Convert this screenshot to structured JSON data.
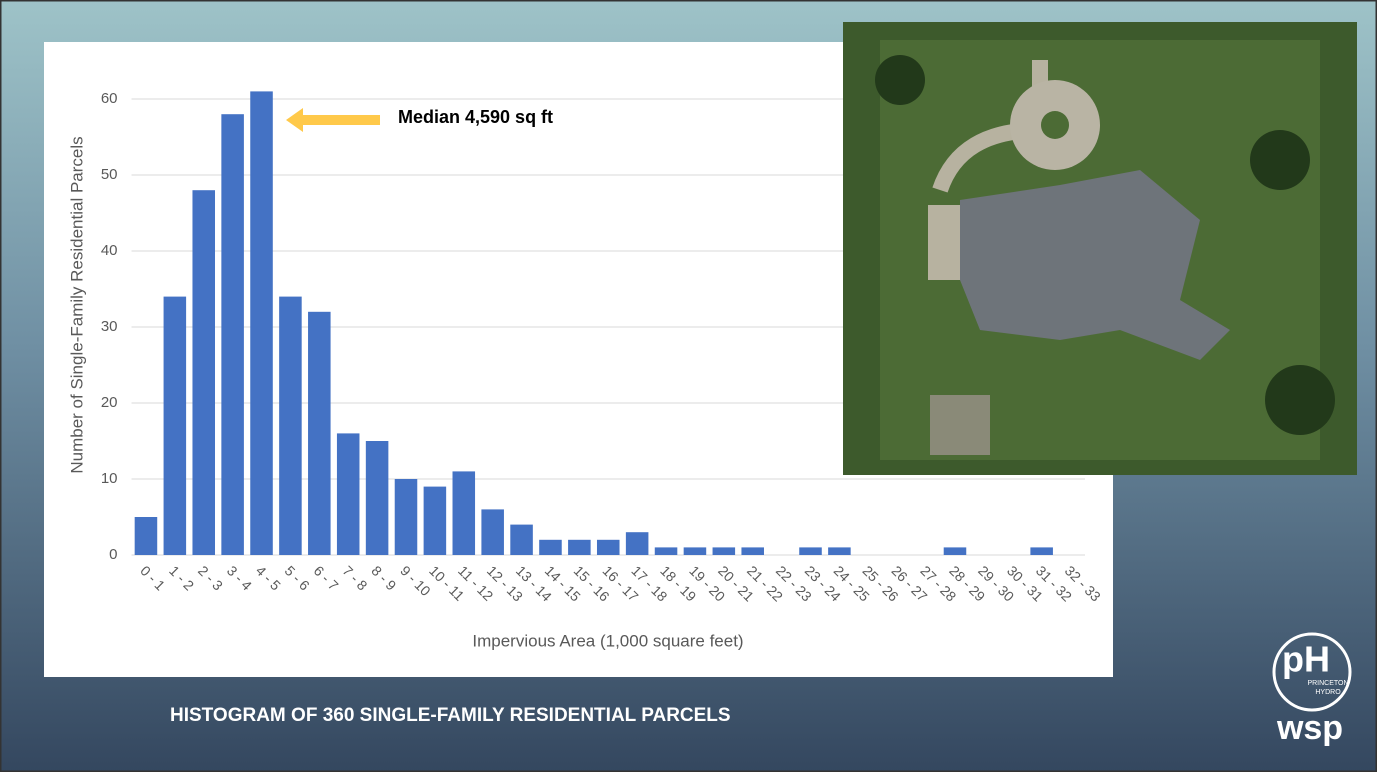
{
  "chart_data": {
    "type": "bar",
    "categories": [
      "0 - 1",
      "1 - 2",
      "2 - 3",
      "3 - 4",
      "4 - 5",
      "5 - 6",
      "6 - 7",
      "7 - 8",
      "8 - 9",
      "9 - 10",
      "10 - 11",
      "11 - 12",
      "12 - 13",
      "13 - 14",
      "14 - 15",
      "15 - 16",
      "16 - 17",
      "17 - 18",
      "18 - 19",
      "19 - 20",
      "20 - 21",
      "21 - 22",
      "22 - 23",
      "23 - 24",
      "24 - 25",
      "25 - 26",
      "26 - 27",
      "27 - 28",
      "28 - 29",
      "29 - 30",
      "30 - 31",
      "31 - 32",
      "32 - 33"
    ],
    "values": [
      5,
      34,
      48,
      58,
      61,
      34,
      32,
      16,
      15,
      10,
      9,
      11,
      6,
      4,
      2,
      2,
      2,
      3,
      1,
      1,
      1,
      1,
      0,
      1,
      1,
      0,
      0,
      0,
      1,
      0,
      0,
      1,
      0
    ],
    "color": "#4472c4",
    "ylim": [
      0,
      65
    ],
    "yticks": [
      0,
      10,
      20,
      30,
      40,
      50,
      60
    ],
    "grid": true,
    "x_label": "Impervious Area (1,000 square feet)",
    "y_label": "Number of Single-Family Residential Parcels",
    "annotation": "Median 4,590 sq ft"
  },
  "slide_title": "HISTOGRAM OF 360 SINGLE-FAMILY RESIDENTIAL PARCELS",
  "logo": {
    "mark": "pH",
    "name": "PRINCETON",
    "sub": "HYDRO",
    "partner": "wsp"
  }
}
